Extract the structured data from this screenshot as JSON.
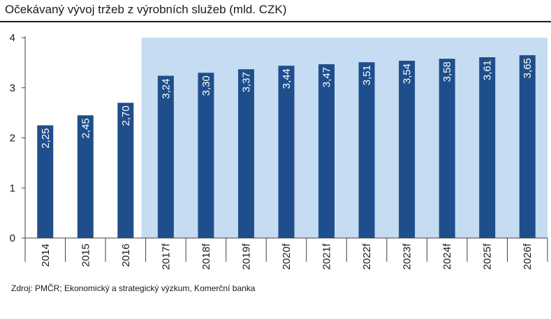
{
  "title": "Očekávaný vývoj tržeb z výrobních služeb (mld. CZK)",
  "source": "Zdroj: PMČR; Ekonomický a strategický výzkum, Komerční banka",
  "colors": {
    "bar": "#1f4e8c",
    "forecast_area": "#c6dcf2",
    "axis": "#404040",
    "grid": "#d9d9d9"
  },
  "chart_data": {
    "type": "bar",
    "title": "Očekávaný vývoj tržeb z výrobních služeb (mld. CZK)",
    "xlabel": "",
    "ylabel": "",
    "categories": [
      "2014",
      "2015",
      "2016",
      "2017f",
      "2018f",
      "2019f",
      "2020f",
      "2021f",
      "2022f",
      "2023f",
      "2024f",
      "2025f",
      "2026f"
    ],
    "values": [
      2.25,
      2.45,
      2.7,
      3.24,
      3.3,
      3.37,
      3.44,
      3.47,
      3.51,
      3.54,
      3.58,
      3.61,
      3.65
    ],
    "data_labels": [
      "2,25",
      "2,45",
      "2,70",
      "3,24",
      "3,30",
      "3,37",
      "3,44",
      "3,47",
      "3,51",
      "3,54",
      "3,58",
      "3,61",
      "3,65"
    ],
    "y_ticks": [
      "0",
      "1",
      "2",
      "3",
      "4"
    ],
    "ylim": [
      0,
      4
    ],
    "forecast_shading_from": "2017f",
    "grid": false,
    "legend": "none"
  }
}
